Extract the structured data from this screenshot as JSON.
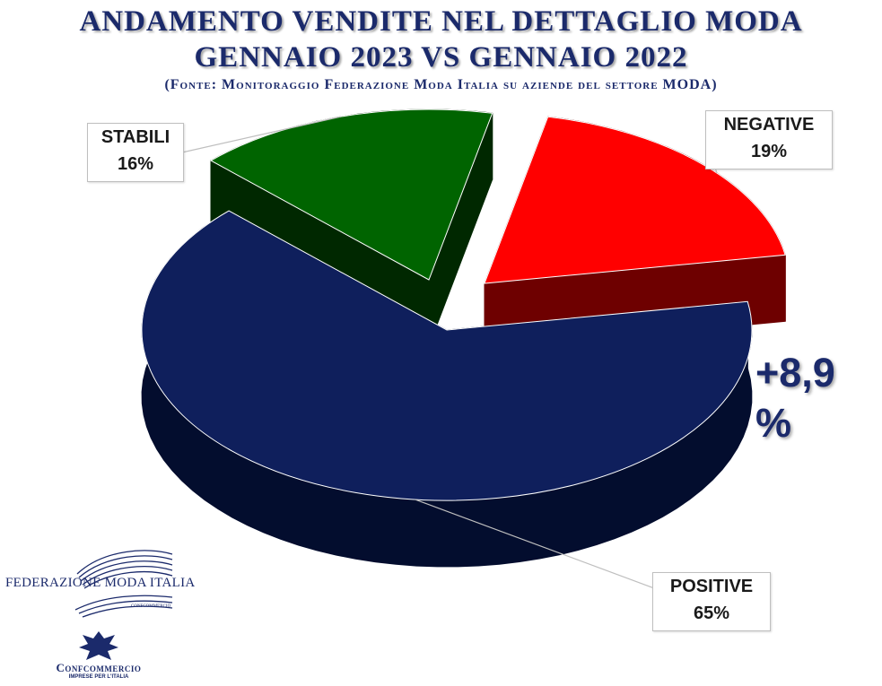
{
  "chart_data": {
    "type": "pie",
    "title": "ANDAMENTO VENDITE NEL DETTAGLIO MODA",
    "subtitle": "GENNAIO 2023 VS GENNAIO 2022",
    "source": "(Fonte: Monitoraggio Federazione Moda Italia su aziende del settore MODA)",
    "slices": [
      {
        "label": "NEGATIVE",
        "value": 19,
        "display": "19%",
        "color": "#ff0000"
      },
      {
        "label": "POSITIVE",
        "value": 65,
        "display": "65%",
        "color": "#0f1f5c"
      },
      {
        "label": "STABILI",
        "value": 16,
        "display": "16%",
        "color": "#006400"
      }
    ],
    "annotation": "+8,9 %"
  },
  "logos": {
    "fmi_name": "FEDERAZIONE MODA ITALIA",
    "fmi_sub": "CONFCOMMERCIO",
    "conf_name": "Confcommercio",
    "conf_tag": "IMPRESE PER L'ITALIA"
  }
}
